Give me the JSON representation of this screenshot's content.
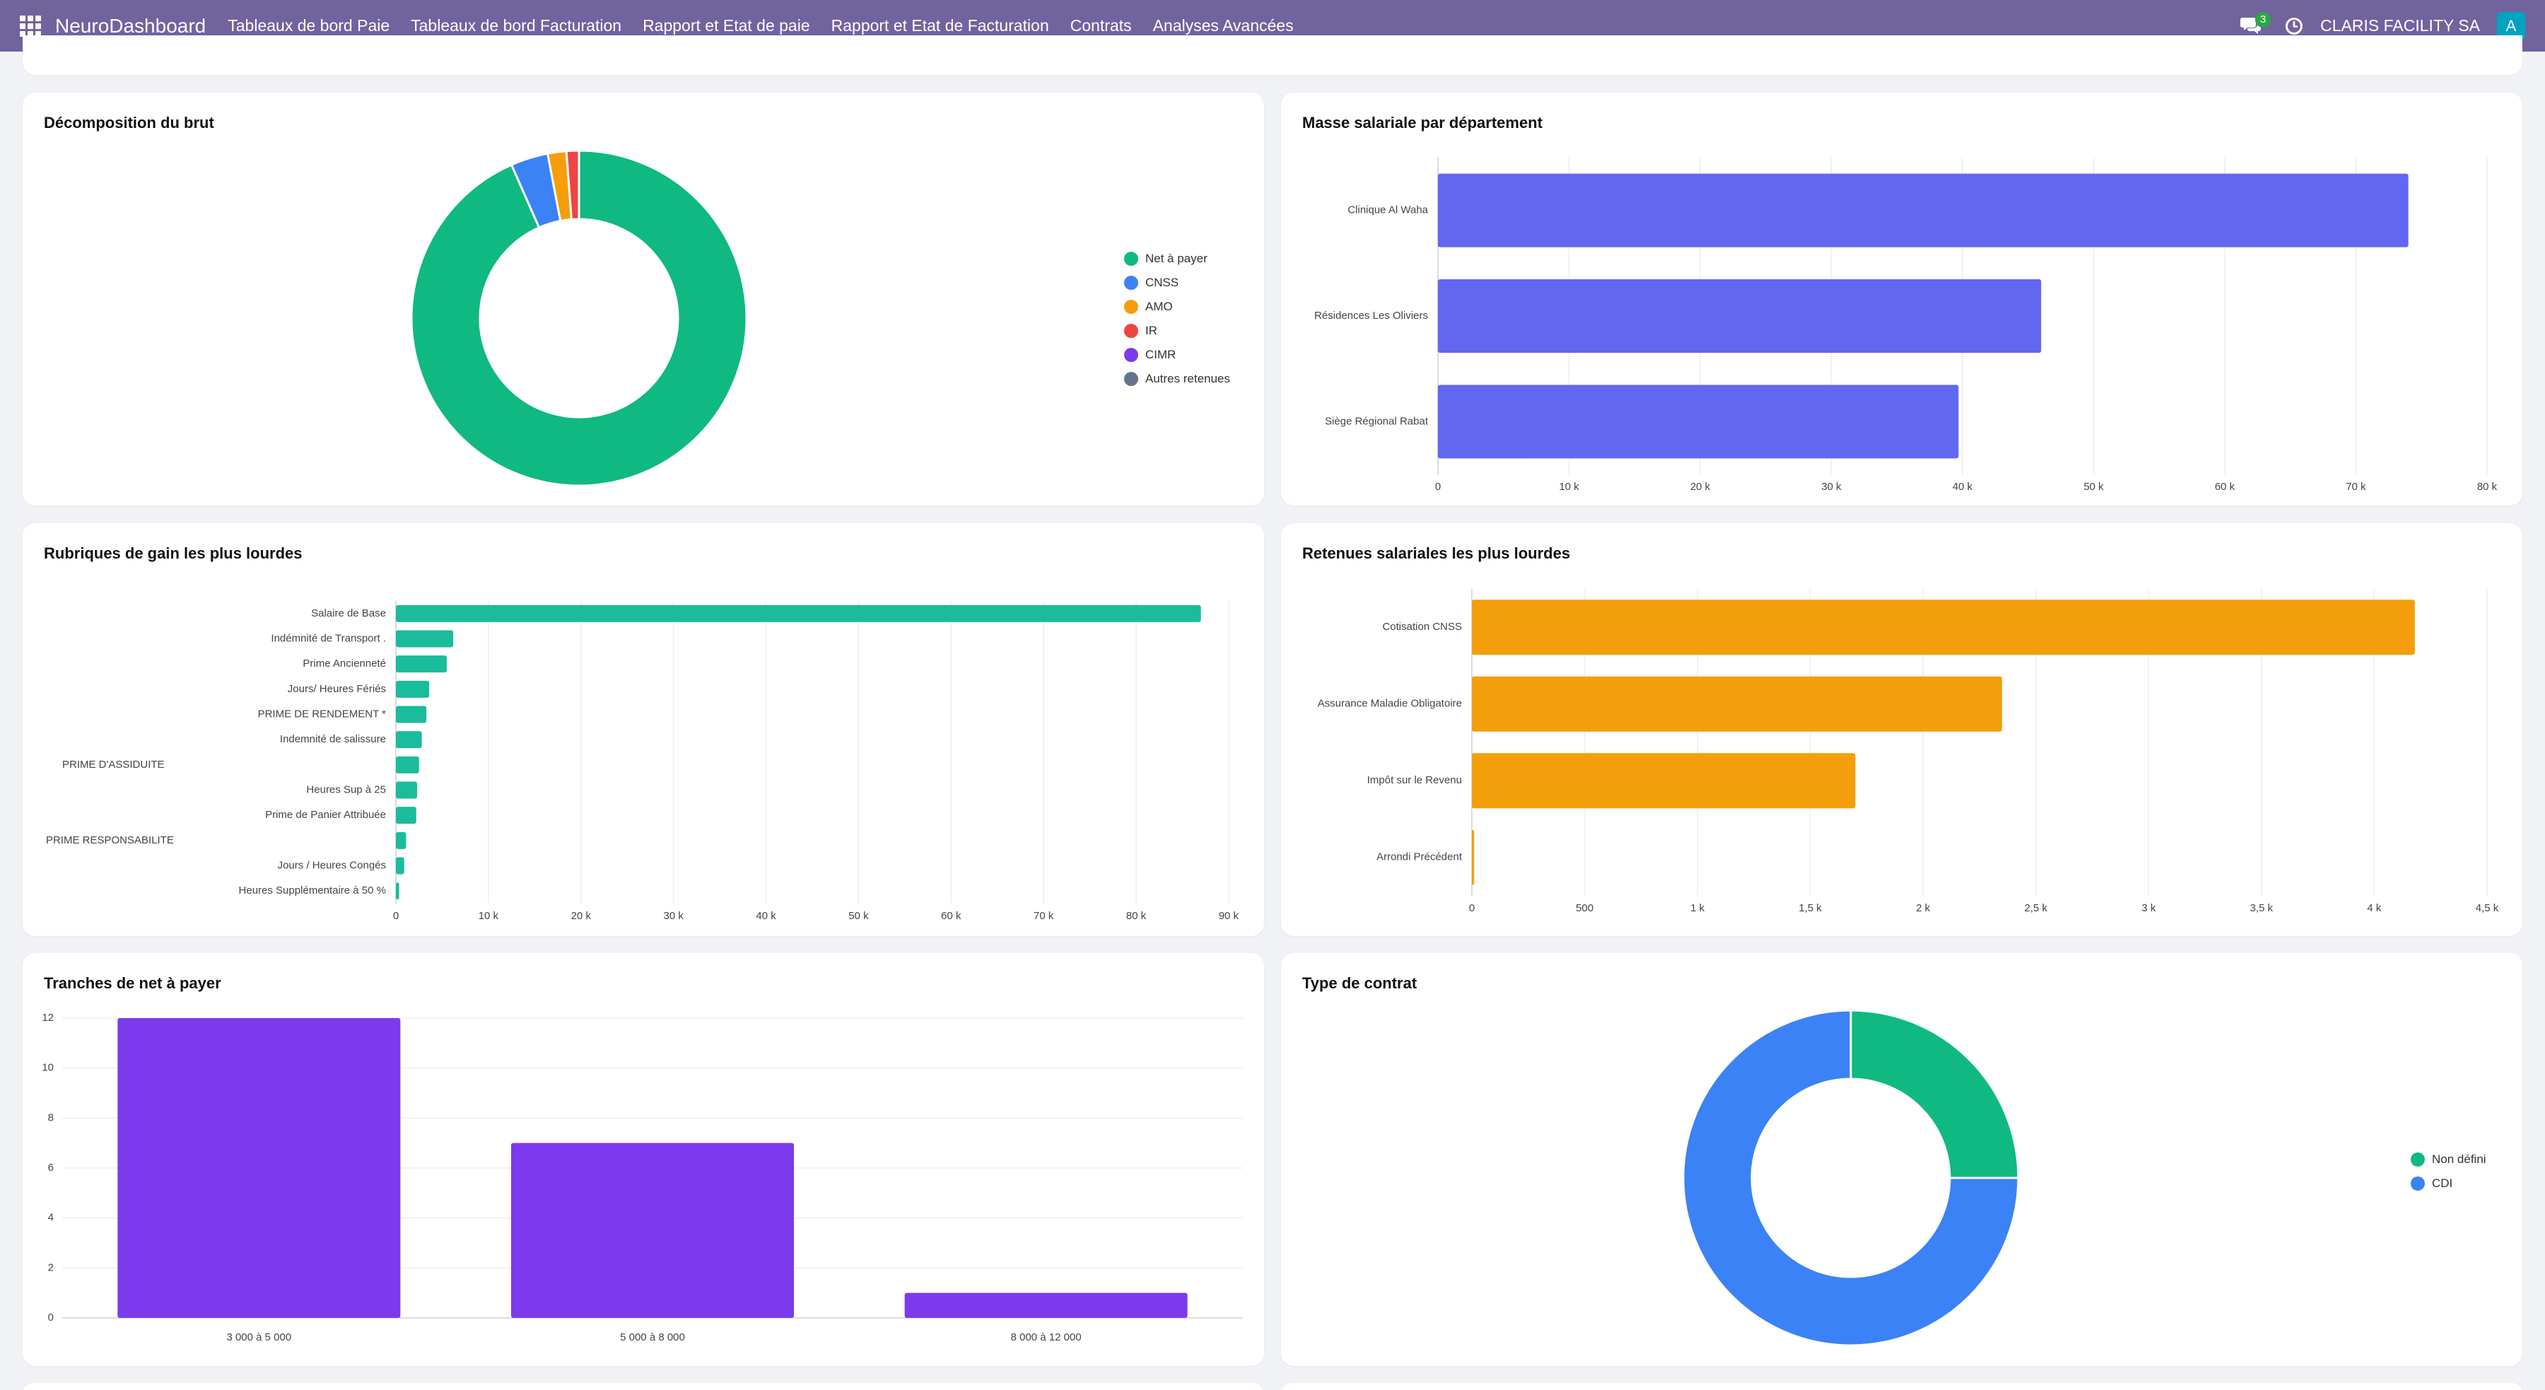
{
  "app": {
    "brand": "NeuroDashboard",
    "menu": [
      "Tableaux de bord Paie",
      "Tableaux de bord Facturation",
      "Rapport et Etat de paie",
      "Rapport et Etat de Facturation",
      "Contrats",
      "Analyses Avancées"
    ],
    "messages_count": "3",
    "company": "CLARIS FACILITY SA",
    "avatar_letter": "A",
    "colors": {
      "navbar": "#71639e",
      "avatar": "#00a3c2",
      "badge": "#28a745"
    },
    "icons": [
      "apps-icon",
      "chat-icon",
      "clock-icon"
    ]
  },
  "cards": {
    "brut": {
      "title": "Décomposition du brut"
    },
    "masse": {
      "title": "Masse salariale par département"
    },
    "gains": {
      "title": "Rubriques de gain les plus lourdes"
    },
    "retenues": {
      "title": "Retenues salariales les plus lourdes"
    },
    "tranches": {
      "title": "Tranches de net à payer"
    },
    "contrat": {
      "title": "Type de contrat"
    }
  },
  "chart_data": [
    {
      "id": "brut",
      "type": "pie",
      "style": "doughnut",
      "title": "Décomposition du brut",
      "legend_position": "right",
      "labels": [
        "Net à payer",
        "CNSS",
        "AMO",
        "IR",
        "CIMR",
        "Autres retenues"
      ],
      "values": [
        93.4,
        3.6,
        1.8,
        1.2,
        0,
        0
      ],
      "colors": [
        "#10b981",
        "#3b82f6",
        "#f59e0b",
        "#ef4444",
        "#7c3aed",
        "#64748b"
      ]
    },
    {
      "id": "masse",
      "type": "bar",
      "orientation": "horizontal",
      "title": "Masse salariale par département",
      "categories": [
        "Clinique Al Waha",
        "Résidences Les Oliviers",
        "Siège Régional Rabat"
      ],
      "values": [
        74000,
        46000,
        39700
      ],
      "xlim": [
        0,
        80000
      ],
      "ticks": [
        0,
        10000,
        20000,
        30000,
        40000,
        50000,
        60000,
        70000,
        80000
      ],
      "tick_labels": [
        "0",
        "10 k",
        "20 k",
        "30 k",
        "40 k",
        "50 k",
        "60 k",
        "70 k",
        "80 k"
      ],
      "color": "#6366f1",
      "grid": true
    },
    {
      "id": "gains",
      "type": "bar",
      "orientation": "horizontal",
      "title": "Rubriques de gain les plus lourdes",
      "categories": [
        "Salaire de Base",
        "Indémnité de Transport .",
        "Prime Ancienneté",
        "Jours/ Heures Fériés",
        "PRIME DE RENDEMENT *",
        "Indemnité de salissure",
        "PRIME D'ASSIDUITE",
        "Heures Sup à 25",
        "Prime de Panier Attribuée",
        "PRIME RESPONSABILITE",
        "Jours / Heures Congés",
        "Heures Supplémentaire à 50 %"
      ],
      "values": [
        87000,
        6200,
        5500,
        3600,
        3300,
        2800,
        2500,
        2300,
        2200,
        1100,
        900,
        350
      ],
      "xlim": [
        0,
        90000
      ],
      "ticks": [
        0,
        10000,
        20000,
        30000,
        40000,
        50000,
        60000,
        70000,
        80000,
        90000
      ],
      "tick_labels": [
        "0",
        "10 k",
        "20 k",
        "30 k",
        "40 k",
        "50 k",
        "60 k",
        "70 k",
        "80 k",
        "90 k"
      ],
      "color": "#1abc9c",
      "grid": true
    },
    {
      "id": "retenues",
      "type": "bar",
      "orientation": "horizontal",
      "title": "Retenues salariales les plus lourdes",
      "categories": [
        "Cotisation CNSS",
        "Assurance Maladie Obligatoire",
        "Impôt sur le Revenu",
        "Arrondi Précédent"
      ],
      "values": [
        4180,
        2350,
        1700,
        10
      ],
      "xlim": [
        0,
        4500
      ],
      "ticks": [
        0,
        500,
        1000,
        1500,
        2000,
        2500,
        3000,
        3500,
        4000,
        4500
      ],
      "tick_labels": [
        "0",
        "500",
        "1 k",
        "1,5 k",
        "2 k",
        "2,5 k",
        "3 k",
        "3,5 k",
        "4 k",
        "4,5 k"
      ],
      "color": "#f59e0b",
      "grid": true
    },
    {
      "id": "tranches",
      "type": "bar",
      "orientation": "vertical",
      "title": "Tranches de net à payer",
      "categories": [
        "3 000 à 5 000",
        "5 000 à 8 000",
        "8 000 à 12 000"
      ],
      "values": [
        12,
        7,
        1
      ],
      "ylim": [
        0,
        12
      ],
      "ticks": [
        0,
        2,
        4,
        6,
        8,
        10,
        12
      ],
      "tick_labels": [
        "0",
        "2",
        "4",
        "6",
        "8",
        "10",
        "12"
      ],
      "color": "#7c3aed",
      "grid": true
    },
    {
      "id": "contrat",
      "type": "pie",
      "style": "doughnut",
      "title": "Type de contrat",
      "legend_position": "right",
      "labels": [
        "Non défini",
        "CDI"
      ],
      "values": [
        25,
        75
      ],
      "colors": [
        "#10b981",
        "#3b82f6"
      ]
    }
  ]
}
